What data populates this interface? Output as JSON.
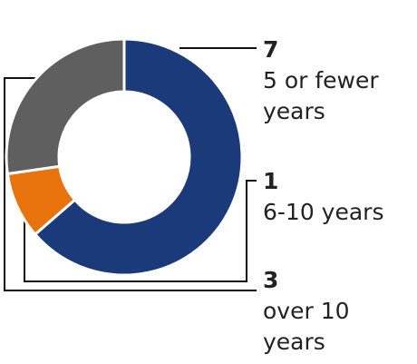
{
  "chart_data": {
    "type": "donut",
    "categories": [
      "5 or fewer years",
      "6-10 years",
      "over 10 years"
    ],
    "values": [
      7,
      1,
      3
    ],
    "colors": [
      "#1b3a7a",
      "#e8720c",
      "#5f5f5f"
    ]
  }
}
